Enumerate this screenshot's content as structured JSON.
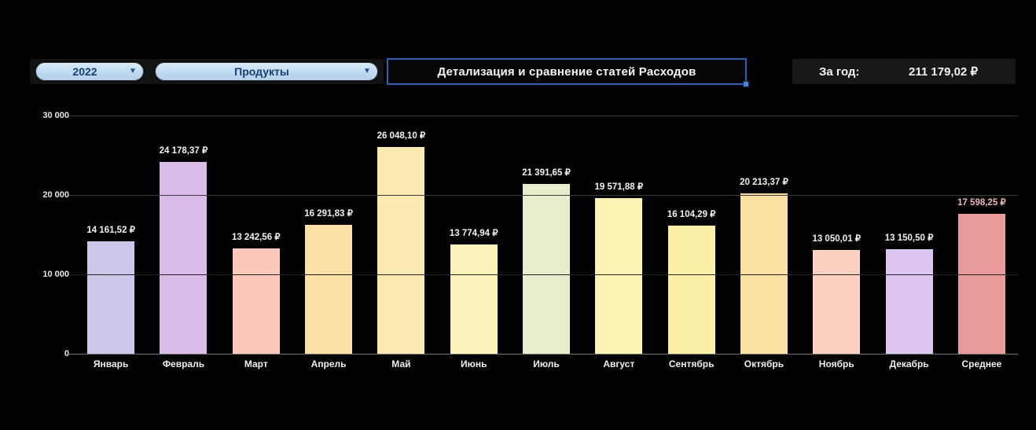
{
  "toolbar": {
    "year_dropdown": {
      "value": "2022"
    },
    "category_dropdown": {
      "value": "Продукты"
    },
    "title": "Детализация и сравнение статей Расходов",
    "year_total_label": "За год:",
    "year_total_value": "211 179,02 ₽"
  },
  "icons": {
    "chevron_down": "▼"
  },
  "colors": {
    "page_background": "#000000",
    "strip_background": "#131313",
    "total_strip_background": "#181818",
    "title_border": "#2e62b4",
    "selection_handle": "#4b82d8",
    "dropdown_fill": "#c3dcf2",
    "dropdown_text": "#17406f",
    "axis_line": "#757575",
    "gridline_major": "#3a3a3a",
    "gridline_faint": "#222222",
    "tick_text": "#e8e8e8",
    "month_text": "#f0f0f0"
  },
  "chart_data": {
    "type": "bar",
    "title": "Детализация и сравнение статей Расходов",
    "xlabel": "",
    "ylabel": "",
    "ylim": [
      0,
      30000
    ],
    "grid": true,
    "legend": false,
    "currency": "₽",
    "categories": [
      "Январь",
      "Февраль",
      "Март",
      "Апрель",
      "Май",
      "Июнь",
      "Июль",
      "Август",
      "Сентябрь",
      "Октябрь",
      "Ноябрь",
      "Декабрь",
      "Среднее"
    ],
    "values": [
      14161.52,
      24178.37,
      13242.56,
      16291.83,
      26048.1,
      13774.94,
      21391.65,
      19571.88,
      16104.29,
      20213.37,
      13050.01,
      13150.5,
      17598.25
    ],
    "value_labels": [
      "14 161,52 ₽",
      "24 178,37 ₽",
      "13 242,56 ₽",
      "16 291,83 ₽",
      "26 048,10 ₽",
      "13 774,94 ₽",
      "21 391,65 ₽",
      "19 571,88 ₽",
      "16 104,29 ₽",
      "20 213,37 ₽",
      "13 050,01 ₽",
      "13 150,50 ₽",
      "17 598,25 ₽"
    ],
    "bar_colors": [
      "#cdc8e9",
      "#dbbce9",
      "#fbc9b9",
      "#fbdfa5",
      "#faeab2",
      "#fbf3ba",
      "#e6eecb",
      "#fbf2b4",
      "#fcf0a6",
      "#fbdfa3",
      "#fbd2c2",
      "#dcc5f0",
      "#e99a9a"
    ],
    "value_label_colors": [
      "#f2f2f2",
      "#f2f2f2",
      "#f2f2f2",
      "#f2f2f2",
      "#f2f2f2",
      "#f2f2f2",
      "#f2f2f2",
      "#f2f2f2",
      "#f2f2f2",
      "#f2f2f2",
      "#f2f2f2",
      "#f2f2f2",
      "#efb9b9"
    ],
    "y_ticks": {
      "labels": [
        "30 000",
        "20 000",
        "10 000",
        "0"
      ],
      "values": [
        30000,
        20000,
        10000,
        0
      ]
    }
  }
}
